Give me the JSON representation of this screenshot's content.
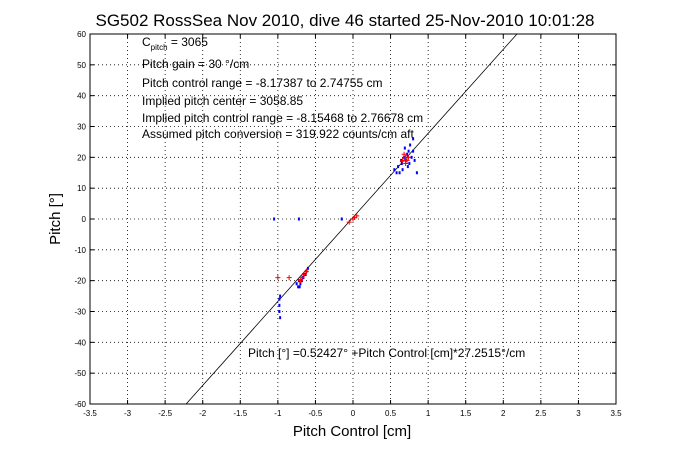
{
  "chart_data": {
    "type": "scatter",
    "title": "SG502 RossSea Nov 2010, dive 46 started 25-Nov-2010 10:01:28",
    "xlabel": "Pitch Control [cm]",
    "ylabel": "Pitch [°]",
    "xlim": [
      -3.5,
      3.5
    ],
    "ylim": [
      -60,
      60
    ],
    "xticks": [
      -3.5,
      -3,
      -2.5,
      -2,
      -1.5,
      -1,
      -0.5,
      0,
      0.5,
      1,
      1.5,
      2,
      2.5,
      3,
      3.5
    ],
    "xtick_labels": [
      "-3.5",
      "-3",
      "-2.5",
      "-2",
      "-1.5",
      "-1",
      "-0.5",
      "0",
      "0.5",
      "1",
      "1.5",
      "2",
      "2.5",
      "3",
      "3.5"
    ],
    "yticks": [
      -60,
      -50,
      -40,
      -30,
      -20,
      -10,
      0,
      10,
      20,
      30,
      40,
      50,
      60
    ],
    "ytick_labels": [
      "-60",
      "-50",
      "-40",
      "-30",
      "-20",
      "-10",
      "0",
      "10",
      "20",
      "30",
      "40",
      "50",
      "60"
    ],
    "grid": true,
    "annotations": {
      "c_pitch_main": "C",
      "c_pitch_sub": "pitch",
      "c_pitch_value": " = 3065",
      "pitch_gain": "Pitch gain = 30 °/cm",
      "control_range": "Pitch control range = -8.17387 to 2.74755 cm",
      "implied_center": "Implied pitch center = 3058.85",
      "implied_range": "Implied pitch control range = -8.15468 to 2.76678 cm",
      "conversion": "Assumed pitch conversion = 319.922 counts/cm aft",
      "fit_equation": "Pitch [°] =0.52427° +Pitch Control [cm]*27.2515°/cm"
    },
    "fit_line": {
      "slope": 27.2515,
      "intercept": 0.52427,
      "color": "#000000"
    },
    "series": [
      {
        "color": "#0000ff",
        "points": [
          [
            0.55,
            16
          ],
          [
            0.58,
            15
          ],
          [
            0.6,
            17
          ],
          [
            0.62,
            15
          ],
          [
            0.65,
            18
          ],
          [
            0.66,
            16
          ],
          [
            0.68,
            20
          ],
          [
            0.7,
            19
          ],
          [
            0.72,
            21
          ],
          [
            0.74,
            22
          ],
          [
            0.75,
            18
          ],
          [
            0.76,
            24
          ],
          [
            0.78,
            20
          ],
          [
            0.8,
            26
          ],
          [
            0.8,
            22
          ],
          [
            0.82,
            19
          ],
          [
            0.85,
            15
          ],
          [
            0.64,
            19
          ],
          [
            0.73,
            17
          ],
          [
            0.69,
            23
          ],
          [
            -0.62,
            -17
          ],
          [
            -0.63,
            -18
          ],
          [
            -0.65,
            -18
          ],
          [
            -0.66,
            -19
          ],
          [
            -0.68,
            -20
          ],
          [
            -0.7,
            -21
          ],
          [
            -0.72,
            -20
          ],
          [
            -0.73,
            -22
          ],
          [
            -0.75,
            -21
          ],
          [
            -0.6,
            -16
          ],
          [
            -0.67,
            -19
          ],
          [
            -0.71,
            -22
          ],
          [
            -0.98,
            -26
          ],
          [
            -0.98,
            -28
          ],
          [
            -0.97,
            -25
          ],
          [
            -0.98,
            -30
          ],
          [
            -0.97,
            -32
          ],
          [
            -1.05,
            0
          ],
          [
            -0.72,
            0
          ],
          [
            -0.15,
            0
          ]
        ]
      },
      {
        "color": "#ff0000",
        "points": [
          [
            0.0,
            0
          ],
          [
            0.05,
            1
          ],
          [
            -0.05,
            -1
          ],
          [
            0.02,
            0.5
          ],
          [
            0.7,
            20
          ],
          [
            0.72,
            19
          ],
          [
            0.68,
            21
          ],
          [
            0.66,
            19
          ],
          [
            0.74,
            20
          ],
          [
            0.7,
            18
          ],
          [
            -0.65,
            -18
          ],
          [
            -0.68,
            -19
          ],
          [
            -0.7,
            -20
          ],
          [
            -0.62,
            -17
          ],
          [
            -0.85,
            -19
          ],
          [
            -1.0,
            -19
          ]
        ]
      }
    ]
  }
}
